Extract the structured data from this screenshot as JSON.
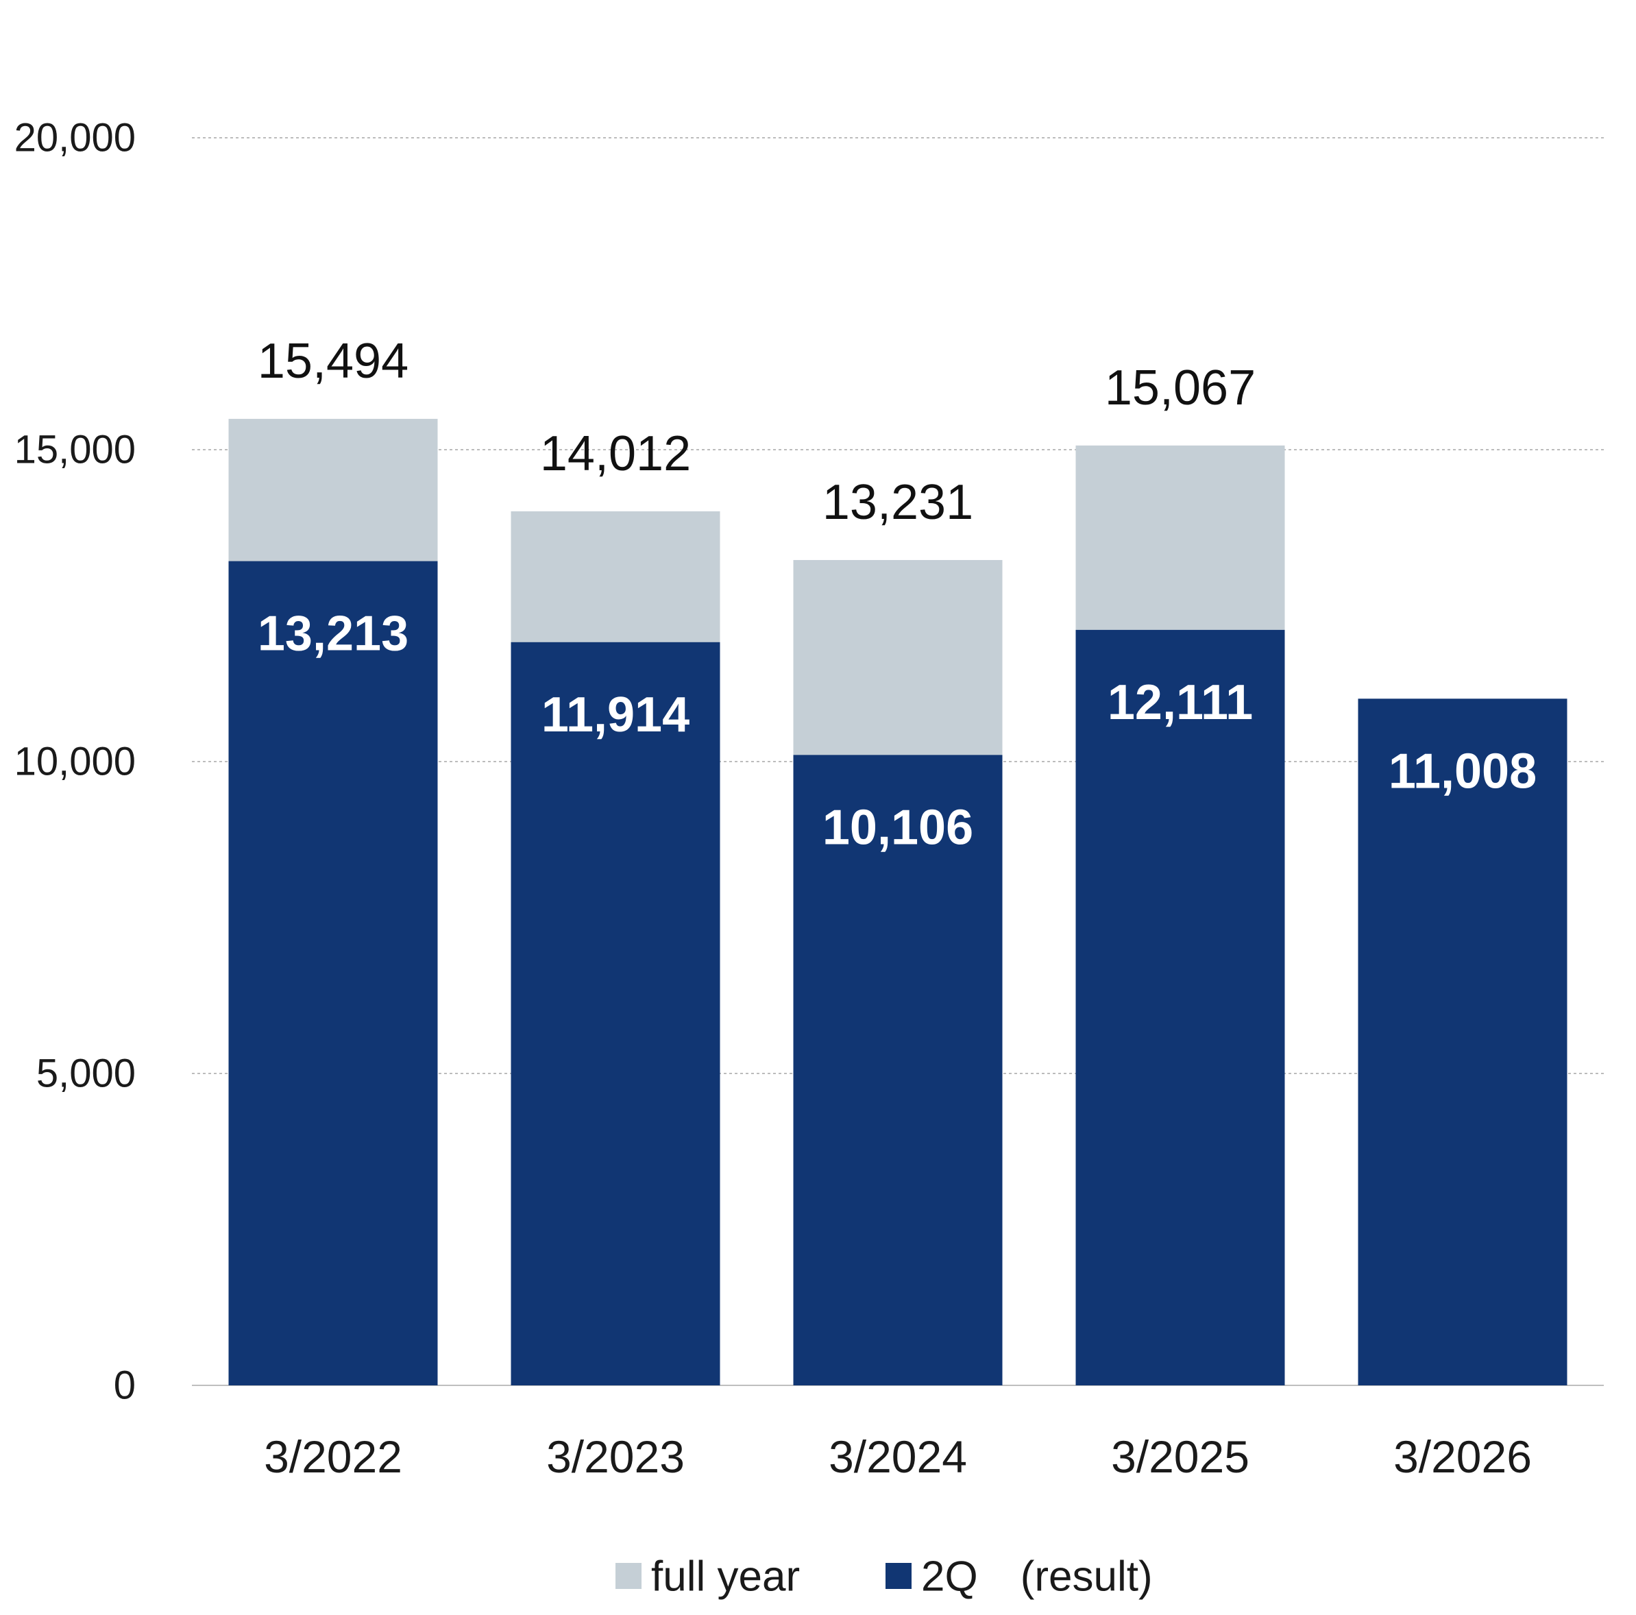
{
  "chart_data": {
    "type": "bar",
    "stacked": "overlay",
    "categories": [
      "3/2022",
      "3/2023",
      "3/2024",
      "3/2025",
      "3/2026"
    ],
    "series": [
      {
        "name": "full year",
        "color": "#c5cfd6",
        "values": [
          15494,
          14012,
          13231,
          15067,
          null
        ],
        "labels": [
          "15,494",
          "14,012",
          "13,231",
          "15,067",
          ""
        ]
      },
      {
        "name": "2Q　(result)",
        "color": "#113673",
        "values": [
          13213,
          11914,
          10106,
          12111,
          11008
        ],
        "labels": [
          "13,213",
          "11,914",
          "10,106",
          "12,111",
          "11,008"
        ]
      }
    ],
    "y_ticks": [
      0,
      5000,
      10000,
      15000,
      20000
    ],
    "y_tick_labels": [
      "0",
      "5,000",
      "10,000",
      "15,000",
      "20,000"
    ],
    "ylim": [
      0,
      20000
    ],
    "grid": true,
    "title": "",
    "xlabel": "",
    "ylabel": "",
    "legend_position": "bottom-center",
    "legend": [
      {
        "label": "full year",
        "color": "#c5cfd6"
      },
      {
        "label": "2Q　(result)",
        "color": "#113673"
      }
    ]
  }
}
